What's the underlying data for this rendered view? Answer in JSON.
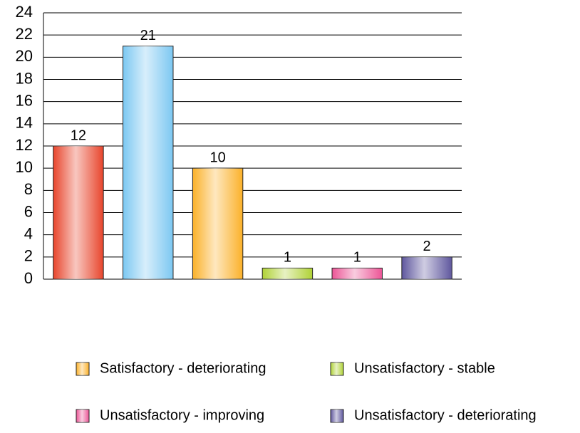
{
  "chart_data": {
    "type": "bar",
    "categories": [
      null,
      null,
      "Satisfactory - deteriorating",
      "Unsatisfactory - stable",
      "Unsatisfactory - improving",
      "Unsatisfactory - deteriorating"
    ],
    "values": [
      12,
      21,
      10,
      1,
      1,
      2
    ],
    "colors": [
      "#e8452c",
      "#7cc8f2",
      "#fbb12a",
      "#b0d236",
      "#ec5596",
      "#5f579e"
    ],
    "ylim": [
      0,
      24
    ],
    "yticks": [
      0,
      2,
      4,
      6,
      8,
      10,
      12,
      14,
      16,
      18,
      20,
      22,
      24
    ],
    "grid": true
  }
}
